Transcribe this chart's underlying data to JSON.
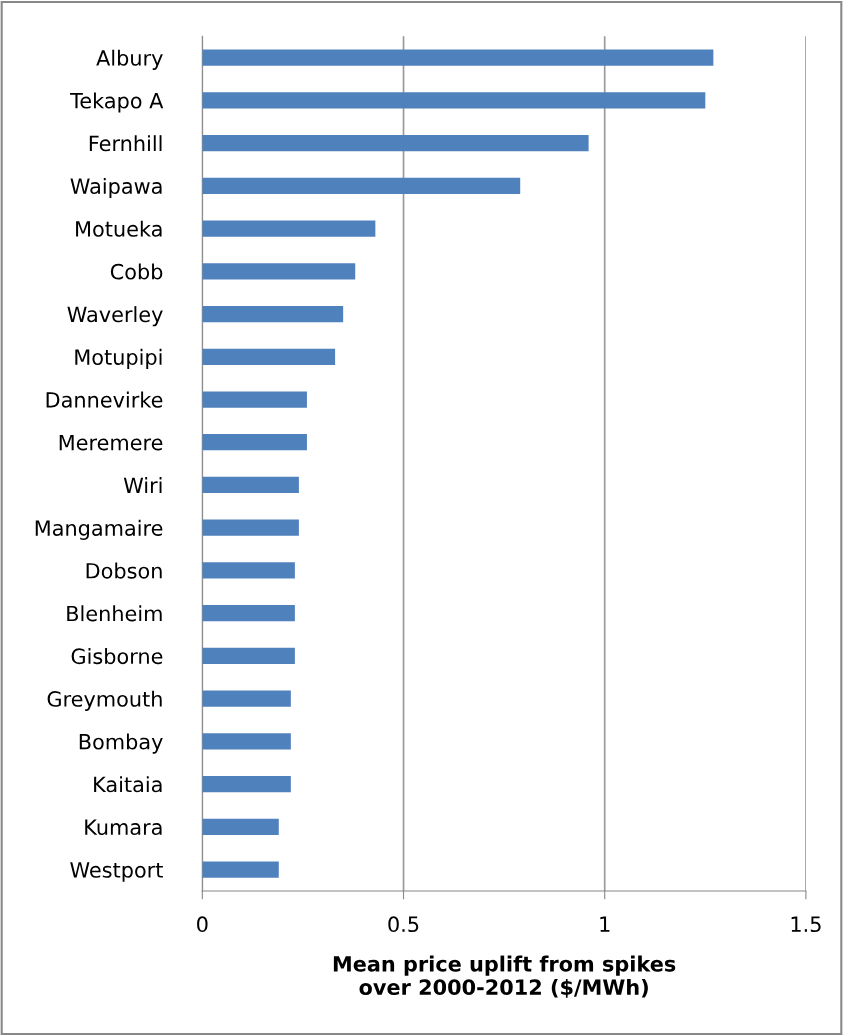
{
  "chart_data": {
    "type": "bar",
    "orientation": "horizontal",
    "xlabel": "Mean price uplift from spikes\nover 2000-2012 ($/MWh)",
    "categories": [
      "Albury",
      "Tekapo A",
      "Fernhill",
      "Waipawa",
      "Motueka",
      "Cobb",
      "Waverley",
      "Motupipi",
      "Dannevirke",
      "Meremere",
      "Wiri",
      "Mangamaire",
      "Dobson",
      "Blenheim",
      "Gisborne",
      "Greymouth",
      "Bombay",
      "Kaitaia",
      "Kumara",
      "Westport"
    ],
    "values": [
      1.27,
      1.25,
      0.96,
      0.79,
      0.43,
      0.38,
      0.35,
      0.33,
      0.26,
      0.26,
      0.24,
      0.24,
      0.23,
      0.23,
      0.23,
      0.22,
      0.22,
      0.22,
      0.19,
      0.19
    ],
    "color": "#4f81bd",
    "xlim": [
      0,
      1.5
    ],
    "xticks": [
      0,
      0.5,
      1,
      1.5
    ],
    "grid": "x"
  }
}
